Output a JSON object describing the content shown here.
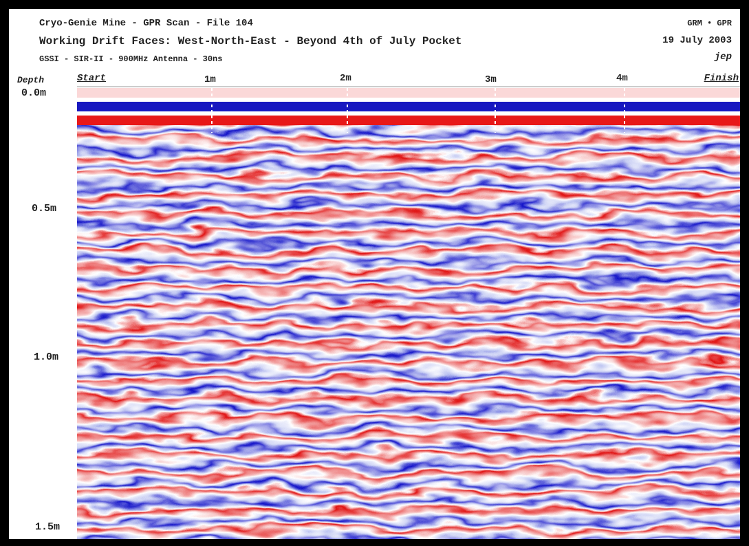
{
  "header": {
    "lines": [
      "Cryo-Genie Mine - GPR Scan - File 104",
      "Working Drift Faces: West-North-East - Beyond 4th of July Pocket",
      "GSSI - SIR-II - 900MHz Antenna - 30ns"
    ],
    "right": [
      "GRM • GPR",
      "19 July 2003",
      "jep"
    ]
  },
  "axis": {
    "depth_title": "Depth",
    "distance_labels": [
      "Start",
      "1m",
      "2m",
      "3m",
      "4m",
      "Finish"
    ],
    "depth_labels": [
      "0.0m",
      "0.5m",
      "1.0m",
      "1.5m"
    ]
  }
}
